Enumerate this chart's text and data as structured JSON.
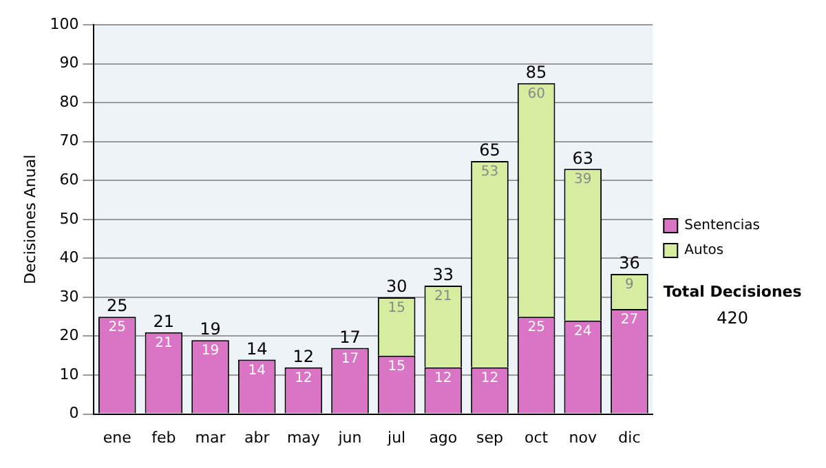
{
  "chart_data": {
    "type": "bar",
    "stacked": true,
    "ylabel": "Decisiones Anual",
    "categories": [
      "ene",
      "feb",
      "mar",
      "abr",
      "may",
      "jun",
      "jul",
      "ago",
      "sep",
      "oct",
      "nov",
      "dic"
    ],
    "series": [
      {
        "name": "Sentencias",
        "color": "#da74c4",
        "values": [
          25,
          21,
          19,
          14,
          12,
          17,
          15,
          12,
          12,
          25,
          24,
          27
        ]
      },
      {
        "name": "Autos",
        "color": "#d6eda0",
        "values": [
          null,
          null,
          null,
          null,
          null,
          null,
          15,
          21,
          53,
          60,
          39,
          9
        ]
      }
    ],
    "totals": [
      "25",
      "21",
      "19",
      "14",
      "12",
      "17",
      "30",
      "33",
      "65",
      "85",
      "63",
      "36"
    ],
    "data_labels": true,
    "ylim": [
      0,
      100
    ],
    "yticks": [
      0,
      10,
      20,
      30,
      40,
      50,
      60,
      70,
      80,
      90,
      100
    ],
    "grid": "y",
    "legend": "right",
    "annotations": [
      "Total Decisiones",
      "420"
    ]
  }
}
